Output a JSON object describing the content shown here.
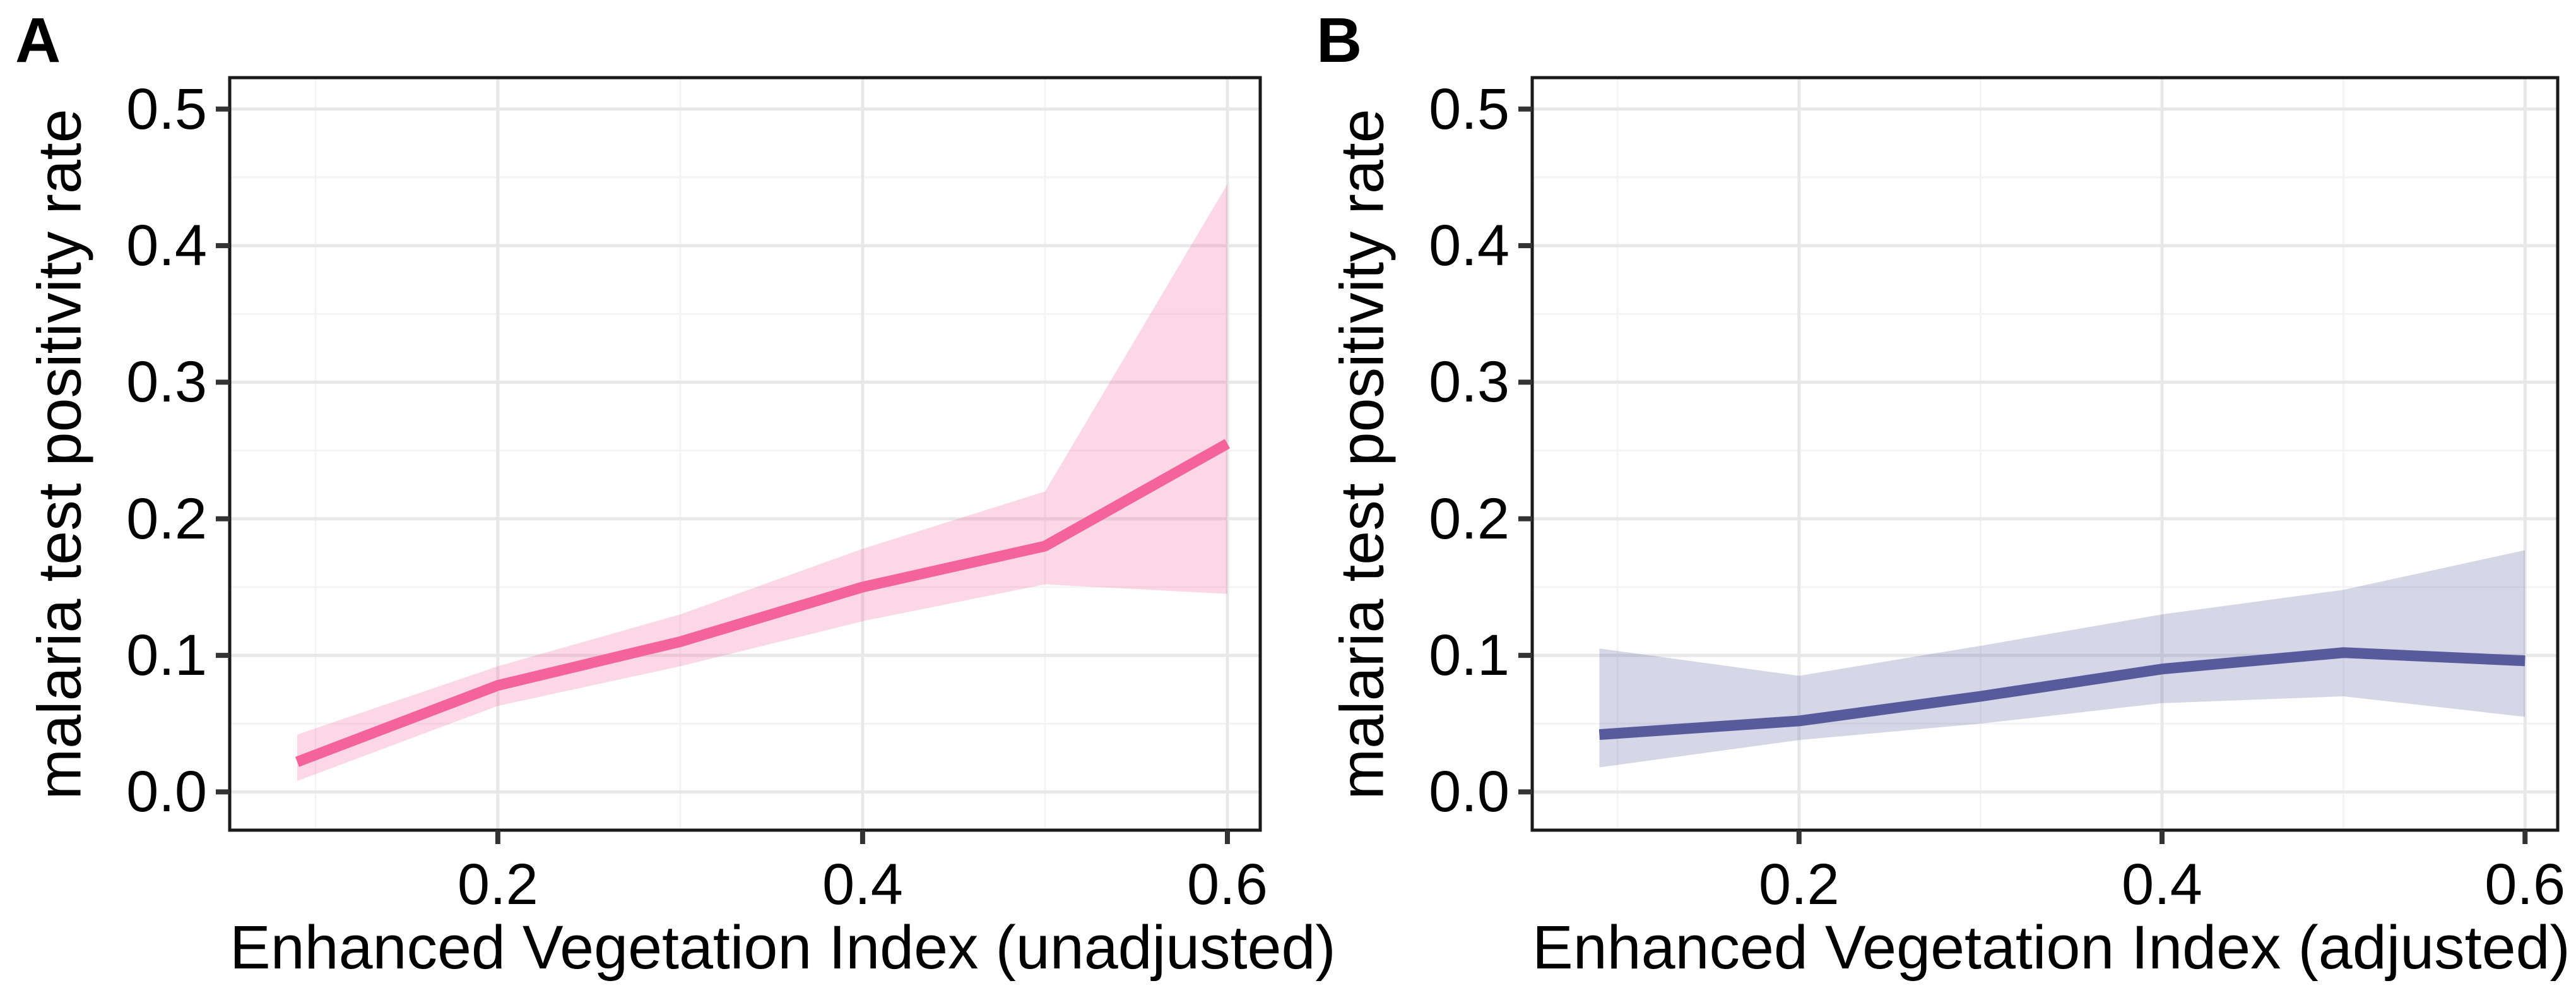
{
  "figure": {
    "background": "#ffffff",
    "text_color": "#000000",
    "border_color": "#1a1a1a",
    "tick_color": "#333333",
    "grid_major_color": "#e8e8e8",
    "grid_minor_color": "#f4f4f4"
  },
  "chart_data": [
    {
      "panel": "A",
      "type": "line",
      "title": "",
      "xlabel": "Enhanced Vegetation Index (unadjusted)",
      "ylabel": "malaria test positivity rate",
      "x": [
        0.09,
        0.2,
        0.3,
        0.4,
        0.5,
        0.6
      ],
      "series": [
        {
          "name": "malaria test positivity rate (mean)",
          "values": [
            0.022,
            0.078,
            0.11,
            0.15,
            0.18,
            0.255
          ]
        }
      ],
      "band": {
        "name": "confidence interval",
        "lower": [
          0.008,
          0.063,
          0.092,
          0.125,
          0.152,
          0.145
        ],
        "upper": [
          0.042,
          0.092,
          0.13,
          0.178,
          0.22,
          0.445
        ]
      },
      "line_color": "#f4639c",
      "band_color": "rgba(244, 99, 156, 0.25)",
      "xlim": [
        0.053,
        0.618
      ],
      "ylim": [
        -0.028,
        0.523
      ],
      "x_ticks": [
        0.2,
        0.4,
        0.6
      ],
      "x_tick_labels": [
        "0.2",
        "0.4",
        "0.6"
      ],
      "y_ticks": [
        0.0,
        0.1,
        0.2,
        0.3,
        0.4,
        0.5
      ],
      "y_tick_labels": [
        "0.0",
        "0.1",
        "0.2",
        "0.3",
        "0.4",
        "0.5"
      ],
      "x_minor_gridlines": [
        0.1,
        0.3,
        0.5
      ],
      "y_minor_gridlines": [
        0.05,
        0.15,
        0.25,
        0.35,
        0.45
      ],
      "grid": true,
      "legend": "none"
    },
    {
      "panel": "B",
      "type": "line",
      "title": "",
      "xlabel": "Enhanced Vegetation Index (adjusted)",
      "ylabel": "malaria test positivity rate",
      "x": [
        0.09,
        0.2,
        0.3,
        0.4,
        0.5,
        0.6
      ],
      "series": [
        {
          "name": "malaria test positivity rate (mean)",
          "values": [
            0.042,
            0.052,
            0.07,
            0.09,
            0.102,
            0.096
          ]
        }
      ],
      "band": {
        "name": "confidence interval",
        "lower": [
          0.018,
          0.038,
          0.05,
          0.065,
          0.07,
          0.055
        ],
        "upper": [
          0.105,
          0.085,
          0.107,
          0.13,
          0.148,
          0.177
        ]
      },
      "line_color": "#575b9d",
      "band_color": "rgba(87, 91, 157, 0.25)",
      "xlim": [
        0.053,
        0.618
      ],
      "ylim": [
        -0.028,
        0.523
      ],
      "x_ticks": [
        0.2,
        0.4,
        0.6
      ],
      "x_tick_labels": [
        "0.2",
        "0.4",
        "0.6"
      ],
      "y_ticks": [
        0.0,
        0.1,
        0.2,
        0.3,
        0.4,
        0.5
      ],
      "y_tick_labels": [
        "0.0",
        "0.1",
        "0.2",
        "0.3",
        "0.4",
        "0.5"
      ],
      "x_minor_gridlines": [
        0.1,
        0.3,
        0.5
      ],
      "y_minor_gridlines": [
        0.05,
        0.15,
        0.25,
        0.35,
        0.45
      ],
      "grid": true,
      "legend": "none"
    }
  ]
}
